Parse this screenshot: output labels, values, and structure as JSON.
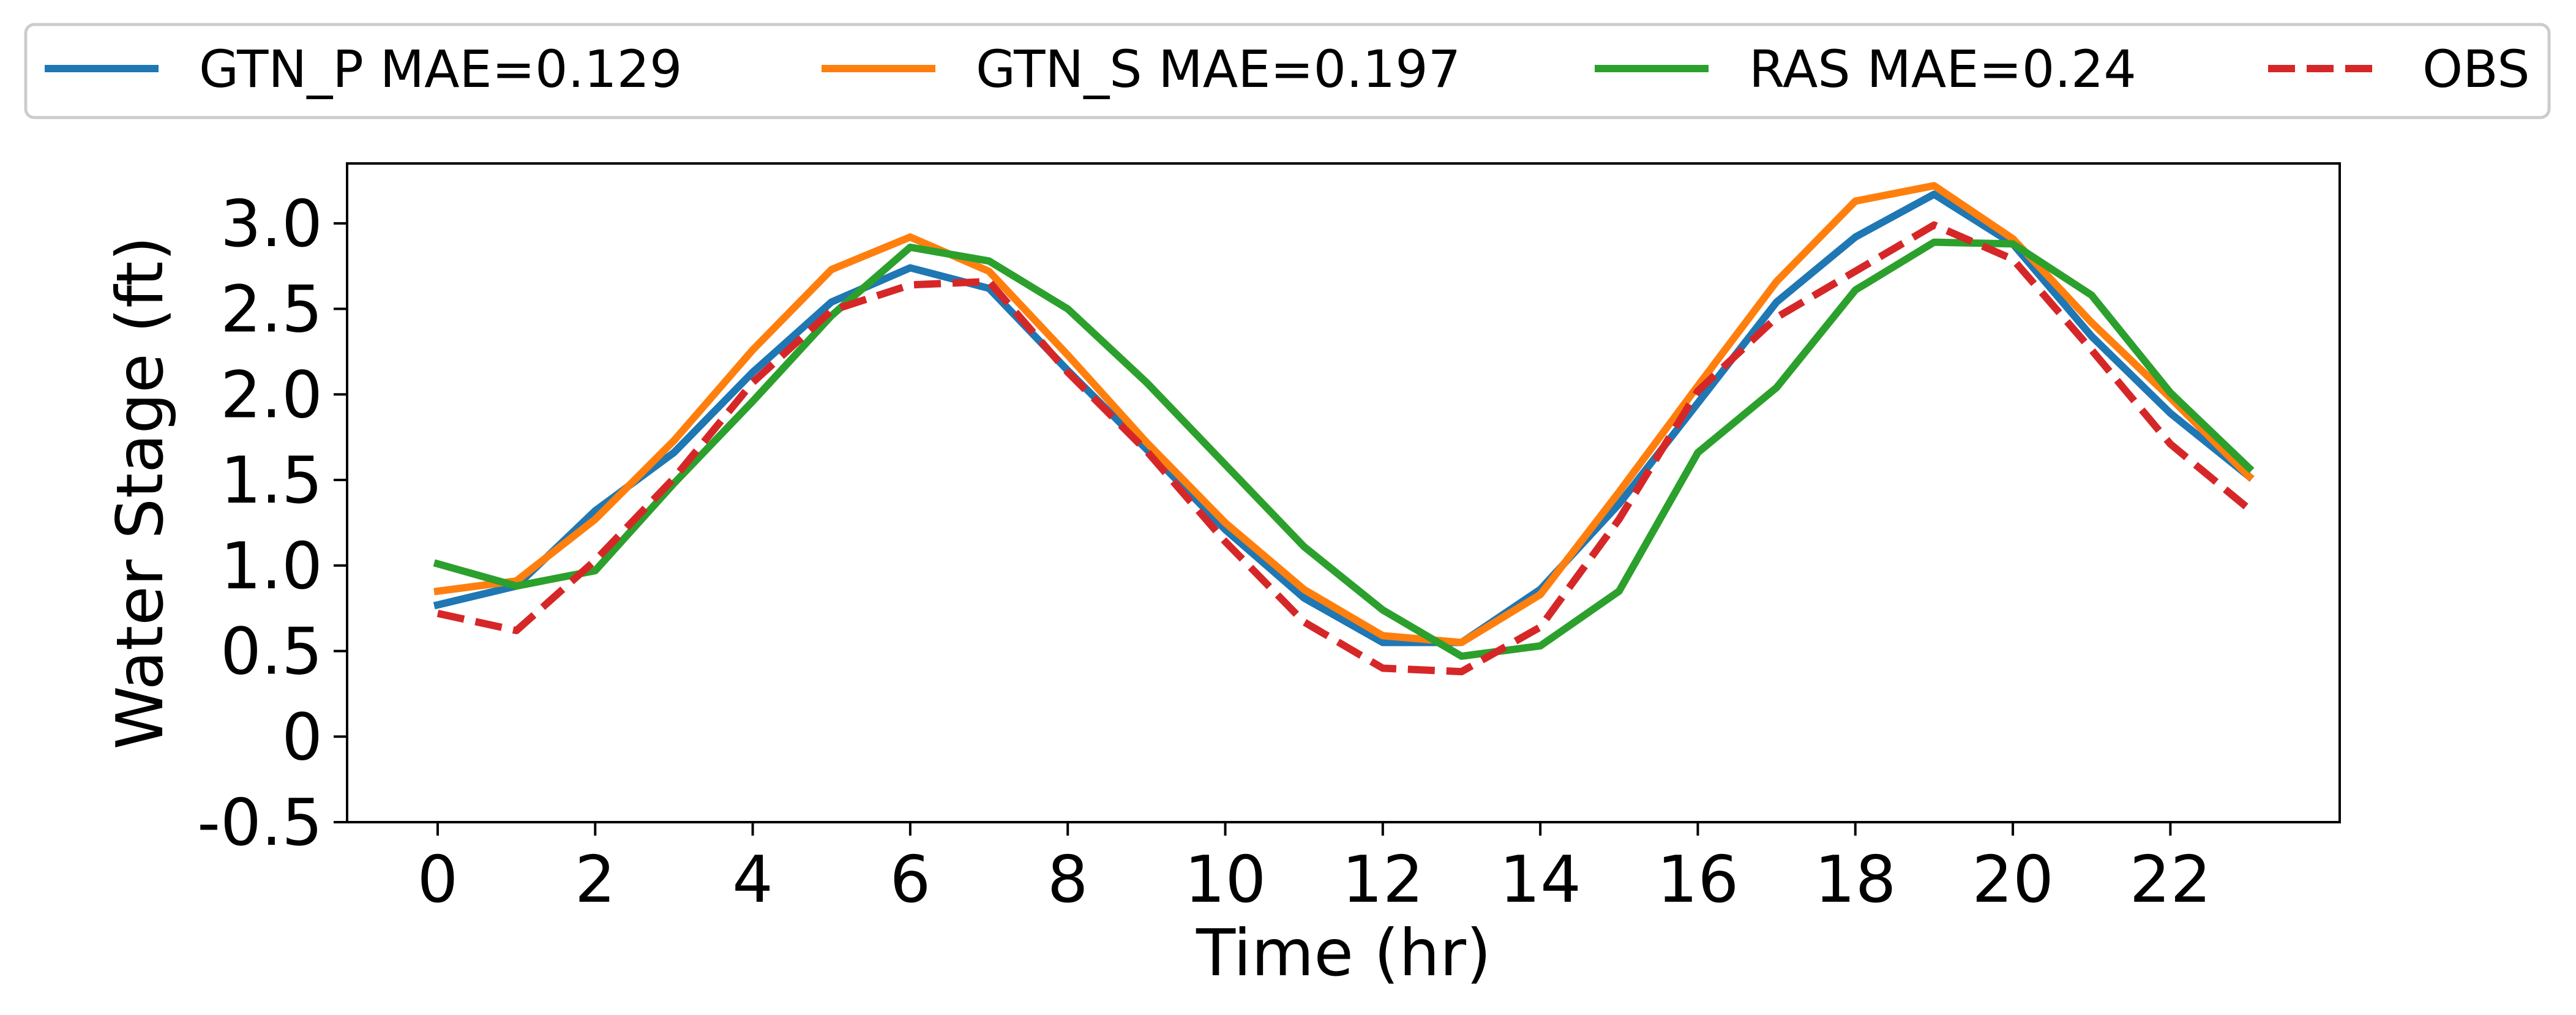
{
  "chart_data": {
    "type": "line",
    "title": "",
    "xlabel": "Time (hr)",
    "ylabel": "Water Stage (ft)",
    "xlim": [
      -1.15,
      24.15
    ],
    "ylim": [
      -0.5,
      3.35
    ],
    "x_ticks": [
      0,
      2,
      4,
      6,
      8,
      10,
      12,
      14,
      16,
      18,
      20,
      22
    ],
    "x_tick_labels": [
      "0",
      "2",
      "4",
      "6",
      "8",
      "10",
      "12",
      "14",
      "16",
      "18",
      "20",
      "22"
    ],
    "y_ticks": [
      -0.5,
      0,
      0.5,
      1.0,
      1.5,
      2.0,
      2.5,
      3.0
    ],
    "y_tick_labels": [
      "-0.5",
      "0",
      "0.5",
      "1.0",
      "1.5",
      "2.0",
      "2.5",
      "3.0"
    ],
    "grid": false,
    "legend_position": "top, outside plot",
    "x": [
      0,
      1,
      2,
      3,
      4,
      5,
      6,
      7,
      8,
      9,
      10,
      11,
      12,
      13,
      14,
      15,
      16,
      17,
      18,
      19,
      20,
      21,
      22,
      23
    ],
    "series": [
      {
        "name": "GTN_P MAE=0.129",
        "color": "#1f77b4",
        "style": "solid",
        "values": [
          0.77,
          0.88,
          1.32,
          1.66,
          2.13,
          2.54,
          2.74,
          2.62,
          2.14,
          1.68,
          1.21,
          0.81,
          0.55,
          0.55,
          0.86,
          1.36,
          1.95,
          2.54,
          2.92,
          3.17,
          2.88,
          2.34,
          1.89,
          1.52
        ]
      },
      {
        "name": "GTN_S MAE=0.197",
        "color": "#ff7f0e",
        "style": "solid",
        "values": [
          0.85,
          0.91,
          1.27,
          1.73,
          2.26,
          2.73,
          2.92,
          2.72,
          2.23,
          1.72,
          1.25,
          0.86,
          0.59,
          0.55,
          0.83,
          1.43,
          2.05,
          2.66,
          3.13,
          3.22,
          2.91,
          2.42,
          1.98,
          1.52
        ]
      },
      {
        "name": "RAS MAE=0.24",
        "color": "#2ca02c",
        "style": "solid",
        "values": [
          1.01,
          0.88,
          0.97,
          1.48,
          1.96,
          2.46,
          2.86,
          2.78,
          2.5,
          2.07,
          1.59,
          1.11,
          0.74,
          0.47,
          0.53,
          0.85,
          1.66,
          2.04,
          2.61,
          2.89,
          2.88,
          2.58,
          2.01,
          1.57
        ]
      },
      {
        "name": "OBS",
        "color": "#d62728",
        "style": "dashed",
        "values": [
          0.72,
          0.62,
          1.03,
          1.51,
          2.07,
          2.49,
          2.64,
          2.66,
          2.13,
          1.67,
          1.14,
          0.67,
          0.4,
          0.38,
          0.64,
          1.27,
          2.02,
          2.45,
          2.72,
          2.99,
          2.79,
          2.26,
          1.71,
          1.33
        ]
      }
    ]
  }
}
